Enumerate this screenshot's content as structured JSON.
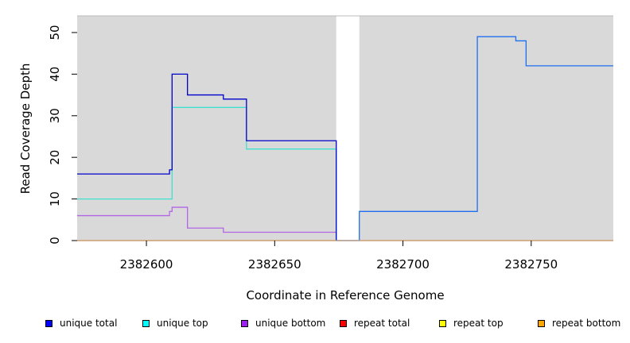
{
  "chart_data": {
    "type": "line",
    "title": "",
    "xlabel": "Coordinate in Reference Genome",
    "ylabel": "Read Coverage Depth",
    "xlim": [
      2382573,
      2382782
    ],
    "ylim": [
      0,
      54
    ],
    "xticks": [
      2382600,
      2382650,
      2382700,
      2382750
    ],
    "yticks": [
      0,
      10,
      20,
      30,
      40,
      50
    ],
    "grid": false,
    "background": "#d9d9d9",
    "gap": {
      "x_start": 2382674,
      "x_end": 2382683,
      "fill": "#ffffff"
    },
    "legend_position": "bottom",
    "series": [
      {
        "name": "unique total",
        "color": "#0000cd",
        "x": [
          2382573,
          2382609,
          2382610,
          2382616,
          2382630,
          2382639,
          2382674
        ],
        "y": [
          16,
          17,
          40,
          35,
          34,
          24,
          0
        ]
      },
      {
        "name": "unique top",
        "color": "#40e0d0",
        "x": [
          2382573,
          2382610,
          2382639,
          2382674
        ],
        "y": [
          10,
          32,
          22,
          0
        ]
      },
      {
        "name": "unique bottom",
        "color": "#b266e6",
        "x": [
          2382573,
          2382609,
          2382610,
          2382616,
          2382630,
          2382674
        ],
        "y": [
          6,
          7,
          8,
          3,
          2,
          0
        ]
      },
      {
        "name": "repeat total",
        "color": "#e00000",
        "x": [
          2382573,
          2382782
        ],
        "y": [
          0,
          0
        ]
      },
      {
        "name": "repeat top",
        "color": "#ffff00",
        "x": [
          2382573,
          2382782
        ],
        "y": [
          0,
          0
        ]
      },
      {
        "name": "repeat bottom",
        "color": "#ffa500",
        "x": [
          2382573,
          2382782
        ],
        "y": [
          0,
          0
        ]
      },
      {
        "name": "",
        "color": "#1e6ff0",
        "x": [
          2382674,
          2382683,
          2382729,
          2382744,
          2382748,
          2382782
        ],
        "y": [
          0,
          7,
          49,
          48,
          42,
          42
        ]
      }
    ],
    "legend": [
      {
        "label": "unique total",
        "color": "#0000ff"
      },
      {
        "label": "unique top",
        "color": "#00ffff"
      },
      {
        "label": "unique bottom",
        "color": "#a020f0"
      },
      {
        "label": "repeat total",
        "color": "#ff0000"
      },
      {
        "label": "repeat top",
        "color": "#ffff00"
      },
      {
        "label": "repeat bottom",
        "color": "#ffa500"
      }
    ]
  }
}
